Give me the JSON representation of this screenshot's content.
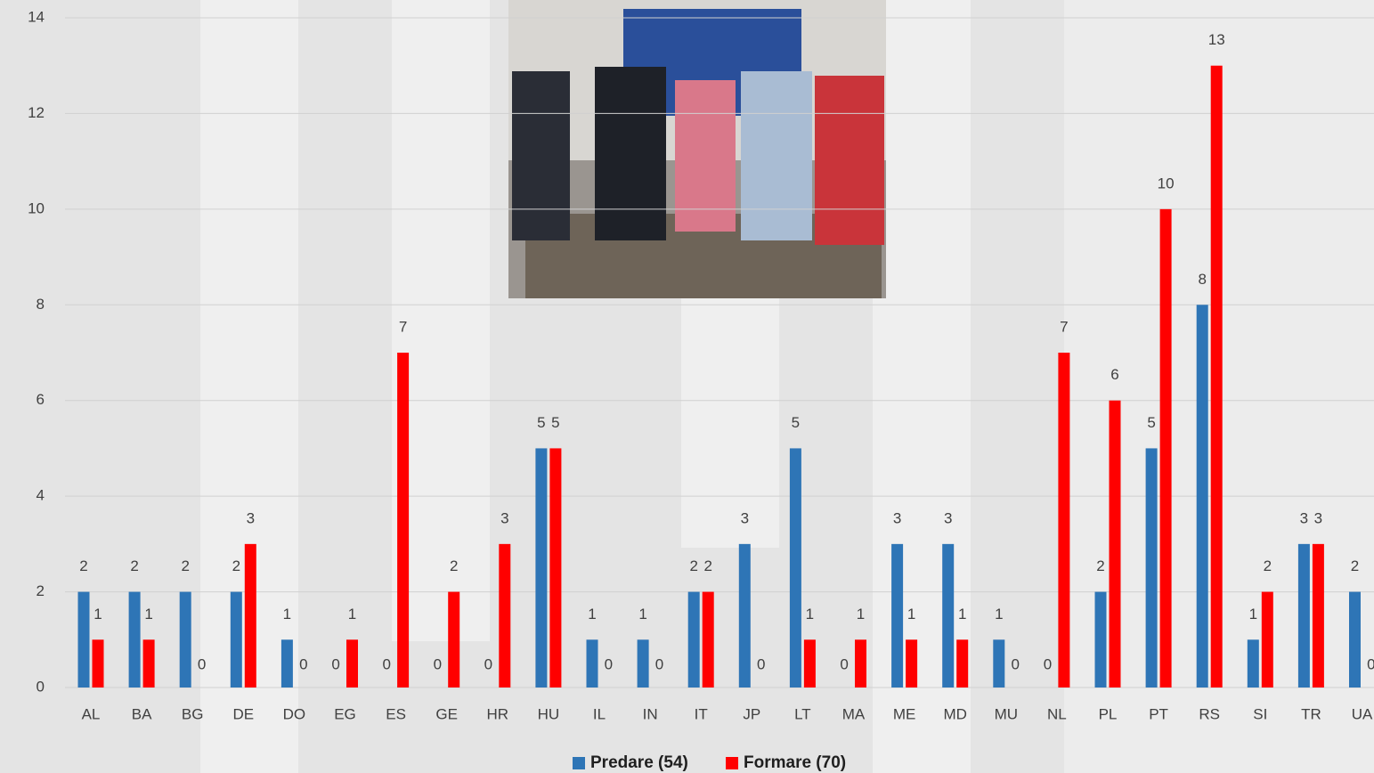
{
  "chart_data": {
    "type": "bar",
    "categories": [
      "AL",
      "BA",
      "BG",
      "DE",
      "DO",
      "EG",
      "ES",
      "GE",
      "HR",
      "HU",
      "IL",
      "IN",
      "IT",
      "JP",
      "LT",
      "MA",
      "ME",
      "MD",
      "MU",
      "NL",
      "PL",
      "PT",
      "RS",
      "SI",
      "TR",
      "UA"
    ],
    "series": [
      {
        "name": "Predare (54)",
        "color": "#2e75b6",
        "values": [
          2,
          2,
          2,
          2,
          1,
          0,
          0,
          0,
          0,
          5,
          1,
          1,
          2,
          3,
          5,
          0,
          3,
          3,
          1,
          0,
          2,
          5,
          8,
          1,
          3,
          2
        ]
      },
      {
        "name": "Formare (70)",
        "color": "#ff0000",
        "values": [
          1,
          1,
          0,
          3,
          0,
          1,
          7,
          2,
          3,
          5,
          0,
          0,
          2,
          0,
          1,
          1,
          1,
          1,
          0,
          7,
          6,
          10,
          13,
          2,
          3,
          0
        ]
      }
    ],
    "ylim": [
      0,
      14
    ],
    "yticks": [
      0,
      2,
      4,
      6,
      8,
      10,
      12,
      14
    ],
    "grid": true
  }
}
